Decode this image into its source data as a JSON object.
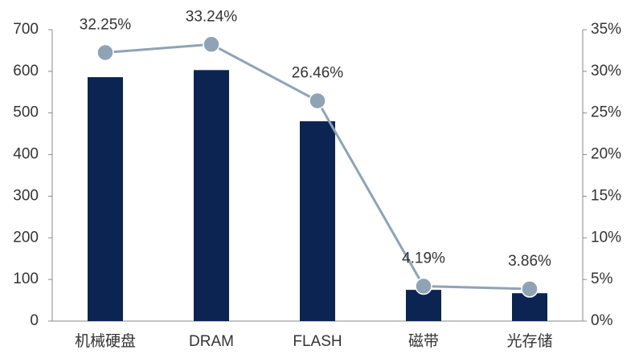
{
  "chart_data": {
    "type": "bar-line",
    "categories": [
      "机械硬盘",
      "DRAM",
      "FLASH",
      "磁带",
      "光存储"
    ],
    "series": [
      {
        "type": "bar",
        "color": "#0b2452",
        "values": [
          586,
          603,
          480,
          75,
          67
        ]
      },
      {
        "type": "line",
        "axis": "y2",
        "color": "#8fa3b5",
        "values": [
          32.25,
          33.24,
          26.46,
          4.19,
          3.86
        ],
        "value_labels": [
          "32.25%",
          "33.24%",
          "26.46%",
          "4.19%",
          "3.86%"
        ]
      }
    ],
    "ylim": [
      0,
      700
    ],
    "yticks": [
      0,
      100,
      200,
      300,
      400,
      500,
      600,
      700
    ],
    "y2lim": [
      0,
      35
    ],
    "y2ticks": [
      {
        "value": 0,
        "label": "0%"
      },
      {
        "value": 5,
        "label": "5%"
      },
      {
        "value": 10,
        "label": "10%"
      },
      {
        "value": 15,
        "label": "15%"
      },
      {
        "value": 20,
        "label": "20%"
      },
      {
        "value": 25,
        "label": "25%"
      },
      {
        "value": 30,
        "label": "30%"
      },
      {
        "value": 35,
        "label": "35%"
      }
    ]
  }
}
